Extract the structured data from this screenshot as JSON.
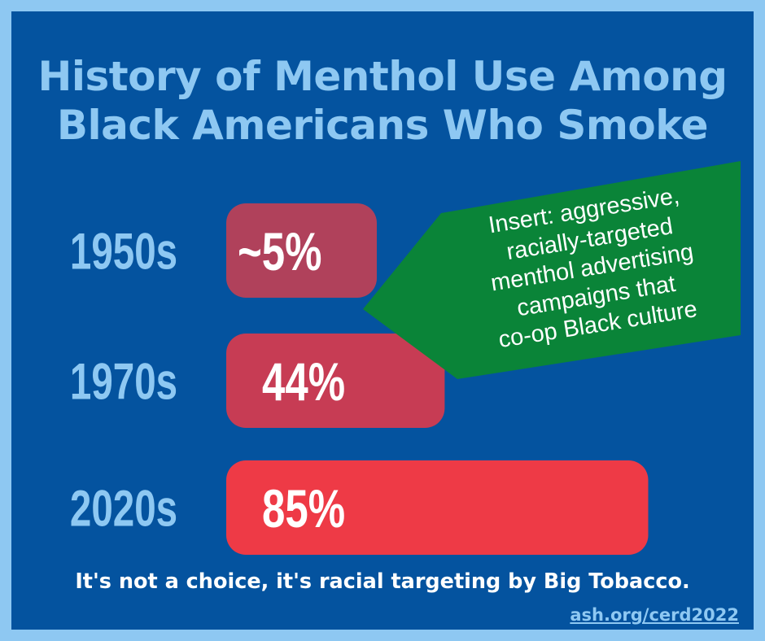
{
  "title_lines": [
    "History of Menthol Use Among",
    "Black Americans Who Smoke"
  ],
  "chart_data": {
    "type": "bar",
    "orientation": "horizontal",
    "categories": [
      "1950s",
      "1970s",
      "2020s"
    ],
    "values": [
      5,
      44,
      85
    ],
    "value_labels": [
      "~5%",
      "44%",
      "85%"
    ],
    "bar_colors": [
      "#b0415b",
      "#c73c54",
      "#ee3a46"
    ],
    "annotation": [
      "Insert: aggressive,",
      "racially-targeted",
      "menthol advertising",
      "campaigns that",
      "co-op Black culture"
    ],
    "annotation_color": "#0a8438"
  },
  "footer_text": "It's not a choice, it's racial targeting by Big Tobacco.",
  "source_link": "ash.org/cerd2022",
  "colors": {
    "background": "#04539f",
    "border": "#8ec8f2",
    "title": "#8ec8f2"
  }
}
